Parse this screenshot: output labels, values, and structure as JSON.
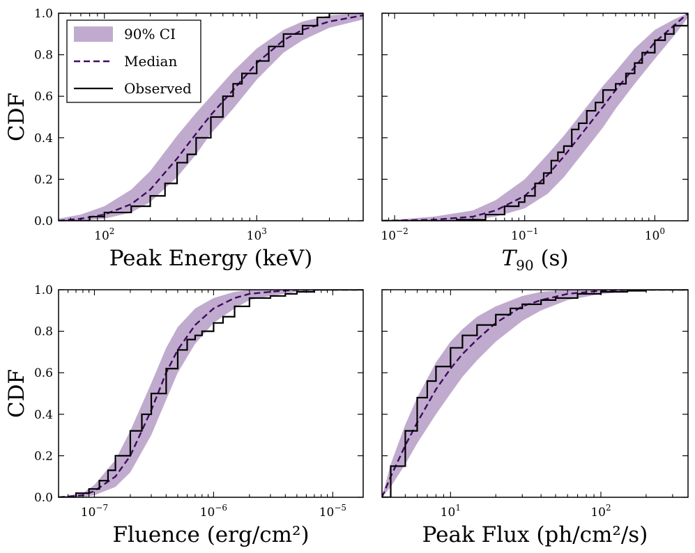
{
  "colors": {
    "band": "#b59cc6",
    "median": "#3f0a5e",
    "observed": "#000000"
  },
  "legend": {
    "placement": "upper-left of first panel",
    "entries": [
      {
        "key": "ci",
        "label": "90% CI"
      },
      {
        "key": "median",
        "label": "Median"
      },
      {
        "key": "observed",
        "label": "Observed"
      }
    ]
  },
  "chart_data": [
    {
      "type": "line",
      "xscale": "log",
      "xlabel": "Peak Energy (keV)",
      "ylabel": "CDF",
      "xlim": [
        50,
        5000
      ],
      "ylim": [
        0,
        1
      ],
      "xticks": [
        {
          "v": 100,
          "e": "2"
        },
        {
          "v": 1000,
          "e": "3"
        }
      ],
      "yticks": [
        "0.0",
        "0.2",
        "0.4",
        "0.6",
        "0.8",
        "1.0"
      ],
      "series": [
        {
          "key": "median",
          "x": [
            50,
            70,
            100,
            150,
            200,
            300,
            400,
            500,
            700,
            1000,
            1500,
            2000,
            3000,
            5000
          ],
          "y": [
            0.0,
            0.01,
            0.03,
            0.08,
            0.15,
            0.3,
            0.42,
            0.51,
            0.63,
            0.76,
            0.87,
            0.92,
            0.96,
            0.99
          ]
        },
        {
          "key": "ci_upper",
          "x": [
            50,
            70,
            100,
            150,
            200,
            300,
            400,
            500,
            700,
            1000,
            1500,
            2000,
            3000,
            5000
          ],
          "y": [
            0.01,
            0.03,
            0.07,
            0.15,
            0.24,
            0.41,
            0.52,
            0.6,
            0.72,
            0.83,
            0.92,
            0.96,
            0.99,
            1.0
          ]
        },
        {
          "key": "ci_lower",
          "x": [
            50,
            70,
            100,
            150,
            200,
            300,
            400,
            500,
            700,
            1000,
            1500,
            2000,
            3000,
            5000
          ],
          "y": [
            0.0,
            0.0,
            0.01,
            0.04,
            0.09,
            0.21,
            0.32,
            0.42,
            0.54,
            0.68,
            0.81,
            0.87,
            0.93,
            0.97
          ]
        },
        {
          "key": "observed",
          "x": [
            50,
            80,
            100,
            150,
            200,
            250,
            300,
            350,
            400,
            500,
            600,
            700,
            800,
            1000,
            1200,
            1500,
            2000,
            2500,
            3000,
            5000
          ],
          "y": [
            0.0,
            0.02,
            0.04,
            0.07,
            0.12,
            0.18,
            0.28,
            0.32,
            0.4,
            0.5,
            0.6,
            0.66,
            0.71,
            0.77,
            0.84,
            0.9,
            0.94,
            0.98,
            1.0,
            1.0
          ]
        }
      ]
    },
    {
      "type": "line",
      "xscale": "log",
      "xlabel": "T90 (s)",
      "ylabel": "",
      "xlim": [
        0.008,
        1.8
      ],
      "ylim": [
        0,
        1
      ],
      "xticks": [
        {
          "v": 0.01,
          "e": "−2"
        },
        {
          "v": 0.1,
          "e": "−1"
        },
        {
          "v": 1,
          "e": "0"
        }
      ],
      "yticks": [],
      "series": [
        {
          "key": "median",
          "x": [
            0.008,
            0.02,
            0.04,
            0.06,
            0.1,
            0.15,
            0.2,
            0.3,
            0.4,
            0.5,
            0.7,
            1.0,
            1.4,
            1.8
          ],
          "y": [
            0.0,
            0.005,
            0.02,
            0.05,
            0.12,
            0.22,
            0.31,
            0.45,
            0.55,
            0.63,
            0.74,
            0.86,
            0.94,
            1.0
          ]
        },
        {
          "key": "ci_upper",
          "x": [
            0.008,
            0.02,
            0.04,
            0.06,
            0.1,
            0.15,
            0.2,
            0.3,
            0.4,
            0.5,
            0.7,
            1.0,
            1.4,
            1.8
          ],
          "y": [
            0.0,
            0.02,
            0.05,
            0.1,
            0.2,
            0.32,
            0.41,
            0.55,
            0.65,
            0.72,
            0.83,
            0.92,
            0.97,
            1.0
          ]
        },
        {
          "key": "ci_lower",
          "x": [
            0.008,
            0.02,
            0.04,
            0.06,
            0.1,
            0.15,
            0.2,
            0.3,
            0.4,
            0.5,
            0.7,
            1.0,
            1.4,
            1.8
          ],
          "y": [
            0.0,
            0.0,
            0.005,
            0.02,
            0.06,
            0.13,
            0.21,
            0.35,
            0.45,
            0.54,
            0.66,
            0.78,
            0.89,
            0.98
          ]
        },
        {
          "key": "observed",
          "x": [
            0.008,
            0.03,
            0.05,
            0.07,
            0.09,
            0.1,
            0.12,
            0.14,
            0.16,
            0.18,
            0.2,
            0.23,
            0.26,
            0.3,
            0.35,
            0.4,
            0.5,
            0.6,
            0.7,
            0.8,
            1.0,
            1.2,
            1.4,
            1.8
          ],
          "y": [
            0.0,
            0.005,
            0.03,
            0.07,
            0.09,
            0.12,
            0.18,
            0.23,
            0.29,
            0.33,
            0.36,
            0.44,
            0.47,
            0.53,
            0.57,
            0.63,
            0.66,
            0.71,
            0.76,
            0.81,
            0.87,
            0.9,
            0.94,
            1.0
          ]
        }
      ]
    },
    {
      "type": "line",
      "xscale": "log",
      "xlabel": "Fluence (erg/cm²)",
      "ylabel": "CDF",
      "xlim": [
        5e-08,
        1.8e-05
      ],
      "ylim": [
        0,
        1
      ],
      "xticks": [
        {
          "v": 1e-07,
          "e": "−7"
        },
        {
          "v": 1e-06,
          "e": "−6"
        },
        {
          "v": 1e-05,
          "e": "−5"
        }
      ],
      "yticks": [
        "0.0",
        "0.2",
        "0.4",
        "0.6",
        "0.8",
        "1.0"
      ],
      "series": [
        {
          "key": "median",
          "x": [
            5e-08,
            8e-08,
            1e-07,
            1.5e-07,
            2e-07,
            3e-07,
            4e-07,
            5e-07,
            7e-07,
            1e-06,
            1.5e-06,
            2e-06,
            3e-06,
            5e-06,
            1e-05,
            1.8e-05
          ],
          "y": [
            0.0,
            0.01,
            0.03,
            0.1,
            0.2,
            0.42,
            0.6,
            0.71,
            0.83,
            0.91,
            0.96,
            0.98,
            0.99,
            1.0,
            1.0,
            1.0
          ]
        },
        {
          "key": "ci_upper",
          "x": [
            5e-08,
            8e-08,
            1e-07,
            1.5e-07,
            2e-07,
            3e-07,
            4e-07,
            5e-07,
            7e-07,
            1e-06,
            1.5e-06,
            2e-06,
            3e-06,
            5e-06,
            1e-05,
            1.8e-05
          ],
          "y": [
            0.0,
            0.02,
            0.06,
            0.18,
            0.32,
            0.55,
            0.72,
            0.82,
            0.91,
            0.96,
            0.99,
            1.0,
            1.0,
            1.0,
            1.0,
            1.0
          ]
        },
        {
          "key": "ci_lower",
          "x": [
            5e-08,
            8e-08,
            1e-07,
            1.5e-07,
            2e-07,
            3e-07,
            4e-07,
            5e-07,
            7e-07,
            1e-06,
            1.5e-06,
            2e-06,
            3e-06,
            5e-06,
            1e-05,
            1.8e-05
          ],
          "y": [
            0.0,
            0.0,
            0.01,
            0.05,
            0.12,
            0.3,
            0.47,
            0.6,
            0.74,
            0.84,
            0.91,
            0.95,
            0.97,
            0.99,
            1.0,
            1.0
          ]
        },
        {
          "key": "observed",
          "x": [
            5e-08,
            7e-08,
            9e-08,
            1.1e-07,
            1.3e-07,
            1.5e-07,
            2e-07,
            2.5e-07,
            3e-07,
            4e-07,
            5e-07,
            6e-07,
            7e-07,
            8e-07,
            1e-06,
            1.2e-06,
            1.5e-06,
            2e-06,
            3e-06,
            4e-06,
            5e-06,
            7e-06,
            1.8e-05
          ],
          "y": [
            0.0,
            0.02,
            0.04,
            0.08,
            0.13,
            0.2,
            0.32,
            0.4,
            0.5,
            0.62,
            0.71,
            0.76,
            0.78,
            0.8,
            0.84,
            0.87,
            0.92,
            0.96,
            0.97,
            0.98,
            0.99,
            1.0,
            1.0
          ]
        }
      ]
    },
    {
      "type": "line",
      "xscale": "log",
      "xlabel": "Peak Flux (ph/cm²/s)",
      "ylabel": "",
      "xlim": [
        3.5,
        380
      ],
      "ylim": [
        0,
        1
      ],
      "xticks": [
        {
          "v": 10,
          "e": "1"
        },
        {
          "v": 100,
          "e": "2"
        }
      ],
      "yticks": [],
      "series": [
        {
          "key": "median",
          "x": [
            3.5,
            4,
            5,
            6,
            8,
            10,
            12,
            15,
            20,
            30,
            40,
            60,
            100,
            150,
            200,
            380
          ],
          "y": [
            0.0,
            0.1,
            0.25,
            0.36,
            0.52,
            0.62,
            0.69,
            0.76,
            0.84,
            0.92,
            0.95,
            0.98,
            0.995,
            1.0,
            1.0,
            1.0
          ]
        },
        {
          "key": "ci_upper",
          "x": [
            3.5,
            4,
            5,
            6,
            8,
            10,
            12,
            15,
            20,
            30,
            40,
            60,
            100,
            150,
            200,
            380
          ],
          "y": [
            0.0,
            0.16,
            0.35,
            0.48,
            0.65,
            0.75,
            0.81,
            0.87,
            0.92,
            0.97,
            0.99,
            1.0,
            1.0,
            1.0,
            1.0,
            1.0
          ]
        },
        {
          "key": "ci_lower",
          "x": [
            3.5,
            4,
            5,
            6,
            8,
            10,
            12,
            15,
            20,
            30,
            40,
            60,
            100,
            150,
            200,
            380
          ],
          "y": [
            0.0,
            0.05,
            0.16,
            0.26,
            0.4,
            0.5,
            0.58,
            0.66,
            0.75,
            0.85,
            0.9,
            0.95,
            0.98,
            0.99,
            1.0,
            1.0
          ]
        },
        {
          "key": "observed",
          "x": [
            3.5,
            4,
            5,
            6,
            7,
            8,
            10,
            12,
            15,
            20,
            25,
            30,
            40,
            50,
            70,
            100,
            150,
            200,
            380
          ],
          "y": [
            0.0,
            0.15,
            0.32,
            0.48,
            0.56,
            0.63,
            0.72,
            0.78,
            0.83,
            0.88,
            0.91,
            0.93,
            0.95,
            0.96,
            0.98,
            0.99,
            0.995,
            1.0,
            1.0
          ]
        }
      ]
    }
  ]
}
